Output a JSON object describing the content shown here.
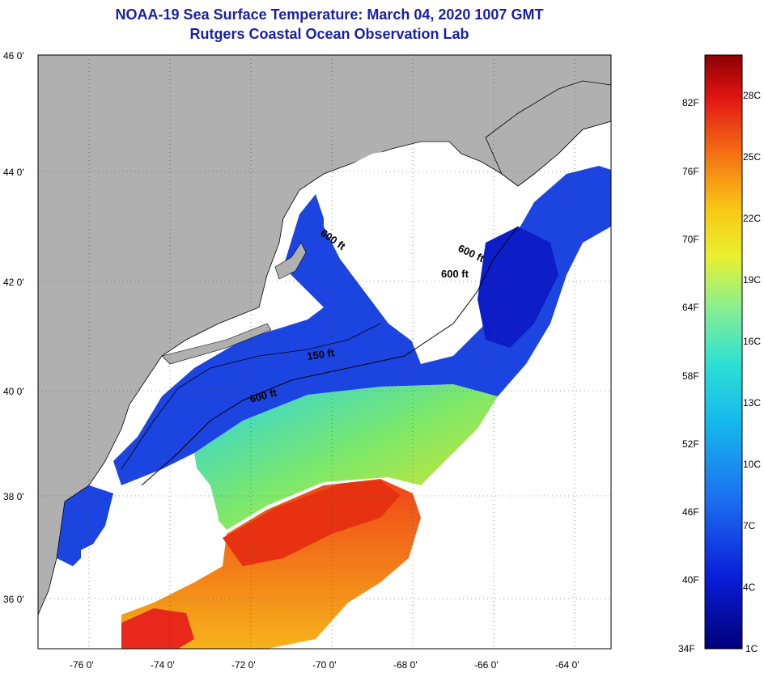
{
  "header": {
    "title": "NOAA-19 Sea Surface Temperature:  March 04, 2020 1007 GMT",
    "subtitle": "Rutgers Coastal Ocean Observation Lab"
  },
  "map": {
    "lat_labels": [
      "46 0'",
      "44 0'",
      "42 0'",
      "40 0'",
      "38 0'",
      "36 0'"
    ],
    "lon_labels": [
      "-76 0'",
      "-74 0'",
      "-72 0'",
      "-70 0'",
      "-68 0'",
      "-66 0'",
      "-64 0'"
    ],
    "lat_range": [
      35,
      46
    ],
    "lon_range": [
      -77,
      -63
    ],
    "contour_labels": [
      "600 ft",
      "600 ft",
      "600 ft",
      "150 ft",
      "600 ft"
    ],
    "colors": {
      "land": "#b0b0b0",
      "cloud": "#ffffff",
      "cold_water": "#1c44e0",
      "warm_water": "#f04a12"
    }
  },
  "colorbar": {
    "fahrenheit_labels": [
      "82F",
      "76F",
      "70F",
      "64F",
      "58F",
      "52F",
      "46F",
      "40F",
      "34F"
    ],
    "celsius_labels": [
      "28C",
      "25C",
      "22C",
      "19C",
      "16C",
      "13C",
      "10C",
      "7C",
      "4C",
      "1C"
    ]
  }
}
